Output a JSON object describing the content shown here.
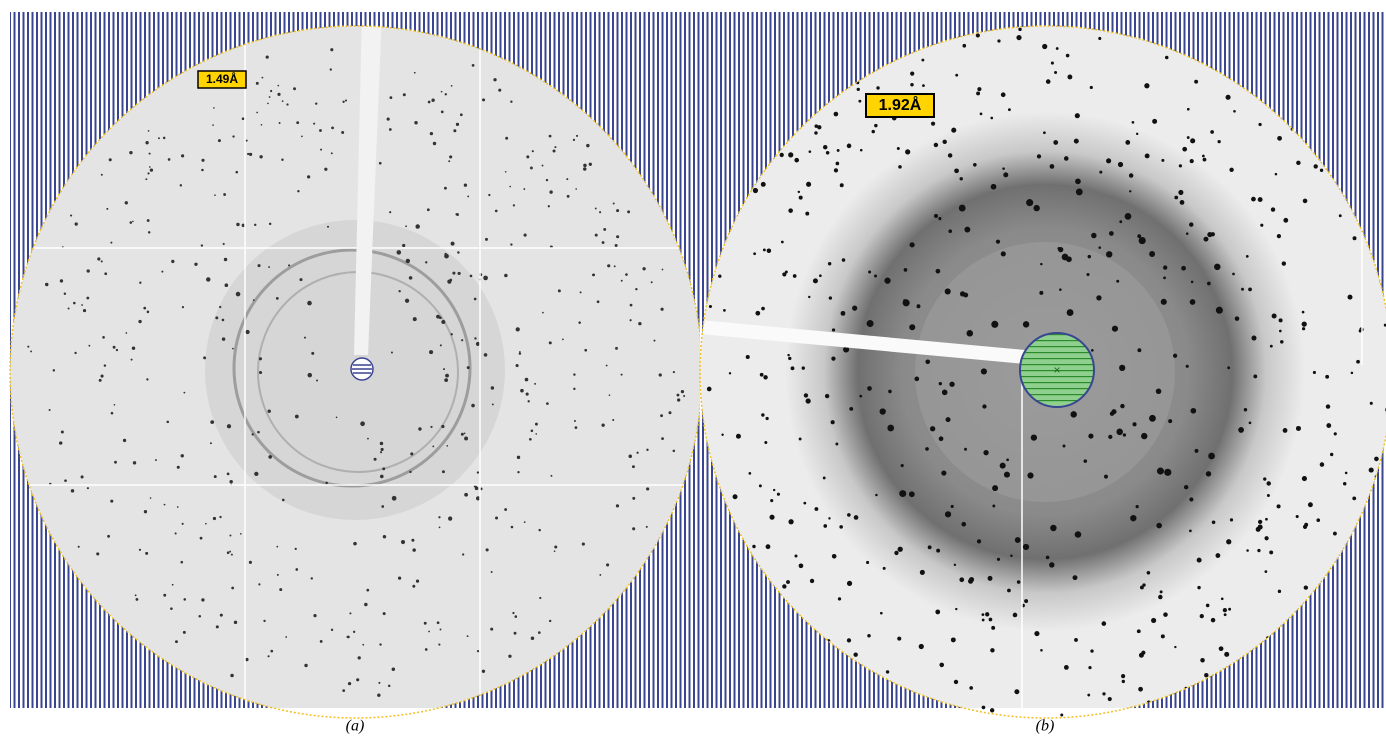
{
  "panels": [
    {
      "resolution": "1.49Å",
      "caption": "(a)"
    },
    {
      "resolution": "1.92Å",
      "caption": "(b)"
    }
  ]
}
